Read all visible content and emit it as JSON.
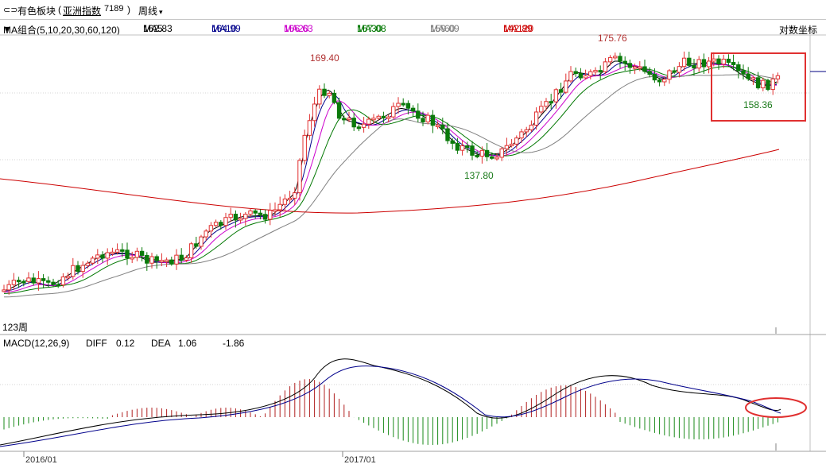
{
  "header": {
    "sector_label": "有色板块",
    "index_label": "亚洲指数",
    "index_code": "7189",
    "period_label": "周线",
    "log_coord_label": "对数坐标"
  },
  "ma_legend": {
    "group": "MA组合(5,10,20,30,60,120)",
    "items": [
      {
        "label": "MA5",
        "value": "162.83",
        "color": "#000000"
      },
      {
        "label": "MA10",
        "value": "164.99",
        "color": "#00008b"
      },
      {
        "label": "MA20",
        "value": "166.63",
        "color": "#cc00cc"
      },
      {
        "label": "MA30",
        "value": "167.08",
        "color": "#007700"
      },
      {
        "label": "MA60",
        "value": "159.09",
        "color": "#808080"
      },
      {
        "label": "MA120",
        "value": "142.89",
        "color": "#cc0000"
      }
    ]
  },
  "price_annotations": {
    "high_2017": "169.40",
    "high_recent": "175.76",
    "low_mid": "137.80",
    "low_recent": "158.36",
    "bottom_left": "123周"
  },
  "macd_legend": {
    "label": "MACD(12,26,9)",
    "diff_label": "DIFF",
    "diff_value": "0.12",
    "dea_label": "DEA",
    "dea_value": "1.06",
    "macd_value": "-1.86"
  },
  "x_axis": {
    "labels": [
      "2016/01",
      "2017/01"
    ]
  },
  "colors": {
    "up": "#e03030",
    "down": "#0a7a0a",
    "highlight": "#e03030",
    "grid": "#c0c0c0"
  }
}
